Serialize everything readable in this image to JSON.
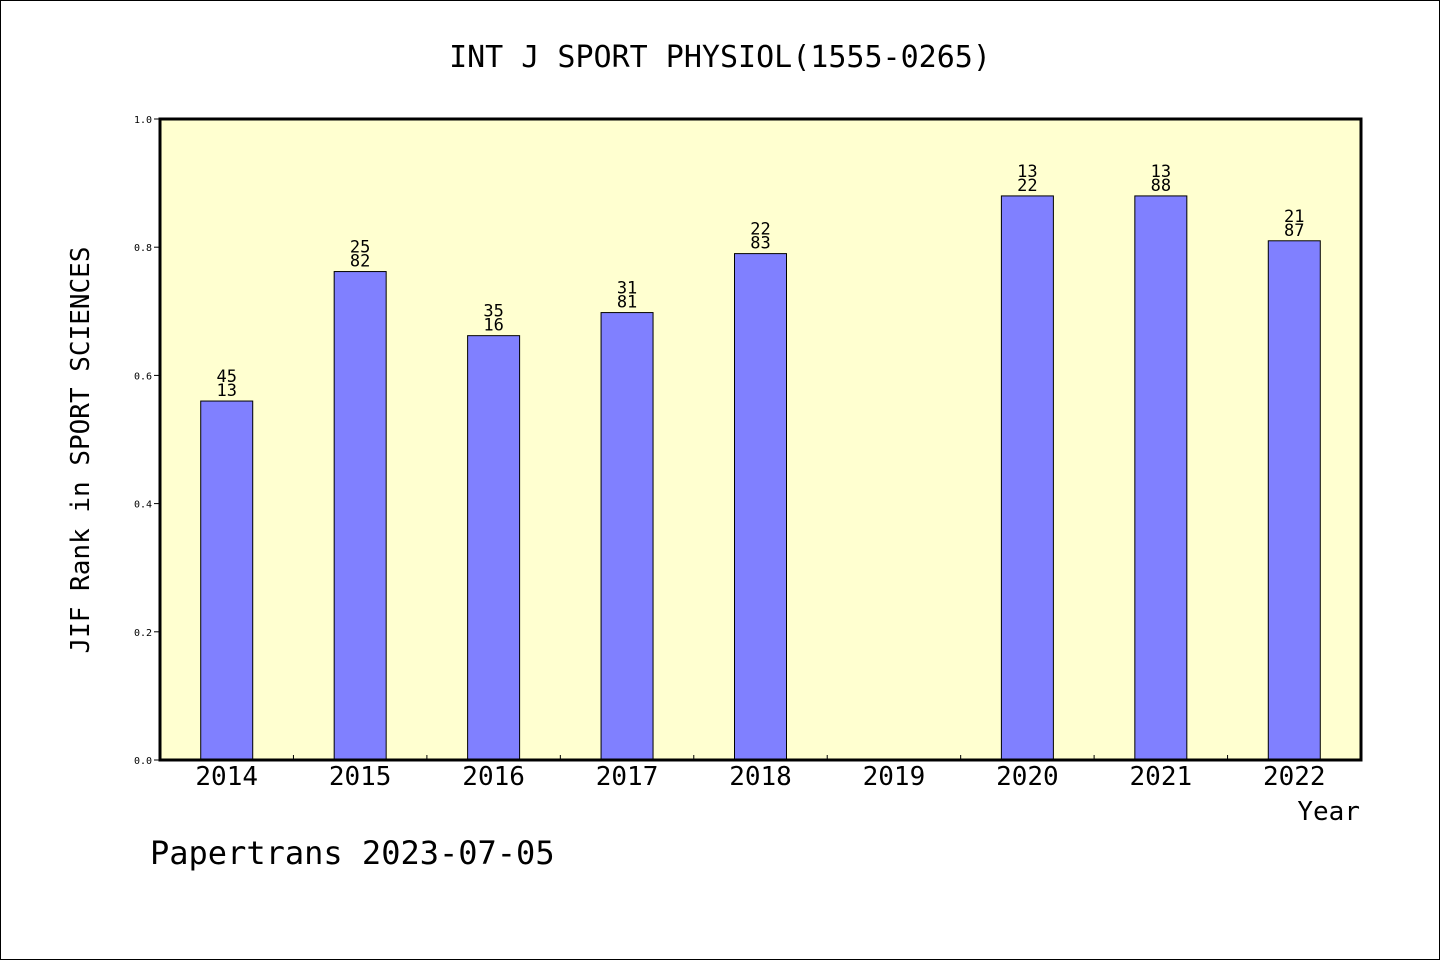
{
  "chart_data": {
    "type": "bar",
    "title": "INT J SPORT PHYSIOL(1555-0265)",
    "xlabel": "Year",
    "ylabel": "JIF Rank in SPORT SCIENCES",
    "ylim": [
      0,
      1.0
    ],
    "yticks": [
      "0.0",
      "0.2",
      "0.4",
      "0.6",
      "0.8",
      "1.0"
    ],
    "categories": [
      "2014",
      "2015",
      "2016",
      "2017",
      "2018",
      "2019",
      "2020",
      "2021",
      "2022"
    ],
    "values": [
      0.56,
      0.762,
      0.662,
      0.698,
      0.79,
      null,
      0.88,
      0.88,
      0.81
    ],
    "labels": [
      [
        "45",
        "13"
      ],
      [
        "25",
        "82"
      ],
      [
        "35",
        "16"
      ],
      [
        "31",
        "81"
      ],
      [
        "22",
        "83"
      ],
      null,
      [
        "13",
        "22"
      ],
      [
        "13",
        "88"
      ],
      [
        "21",
        "87"
      ]
    ],
    "grid": false,
    "colors": {
      "plot_background": "#ffffd0",
      "bar_fill": "#8080ff",
      "bar_stroke": "#000000"
    },
    "footer": "Papertrans 2023-07-05"
  }
}
